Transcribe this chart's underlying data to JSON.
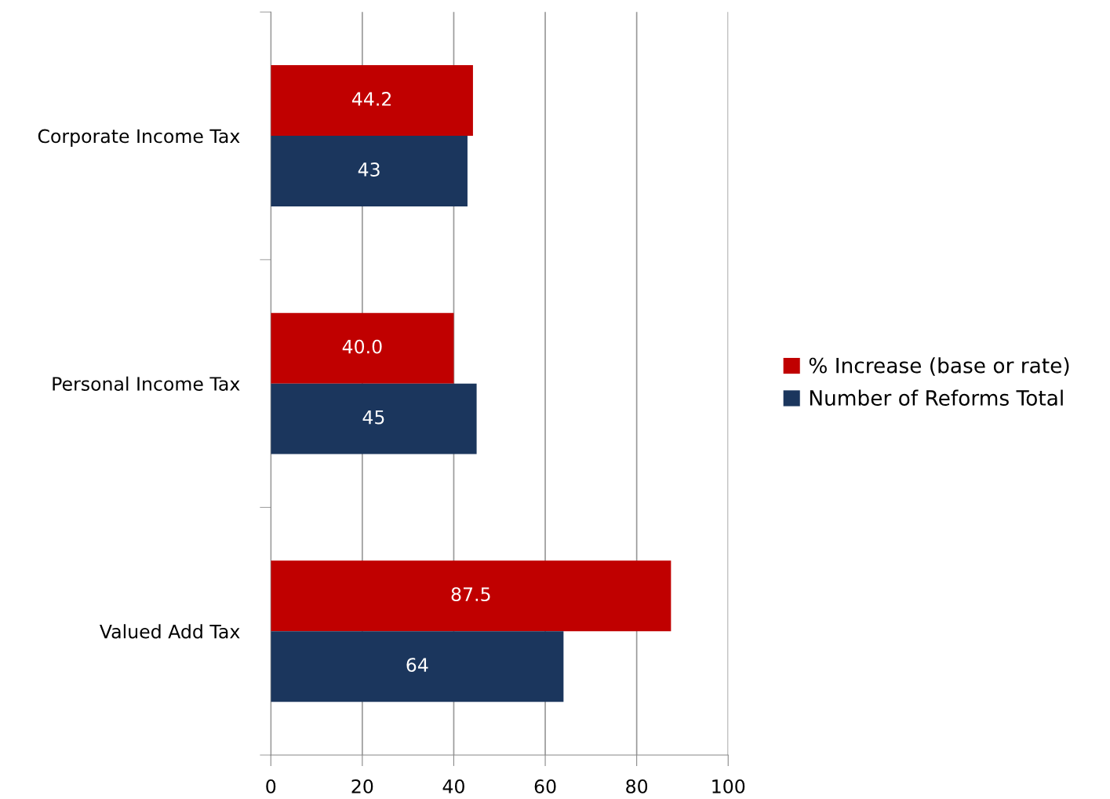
{
  "chart_data": {
    "type": "bar",
    "orientation": "horizontal",
    "categories": [
      "Corporate Income Tax",
      "Personal Income Tax",
      "Valued Add Tax"
    ],
    "series": [
      {
        "name": "% Increase (base or rate)",
        "color": "#c00000",
        "values": [
          44.2,
          40.0,
          87.5
        ],
        "value_labels": [
          "44.2",
          "40.0",
          "87.5"
        ]
      },
      {
        "name": "Number of Reforms Total",
        "color": "#1b365d",
        "values": [
          43,
          45,
          64
        ],
        "value_labels": [
          "43",
          "45",
          "64"
        ]
      }
    ],
    "xlim": [
      0,
      100
    ],
    "xticks": [
      0,
      20,
      40,
      60,
      80,
      100
    ],
    "grid": "x",
    "legend": "right"
  }
}
